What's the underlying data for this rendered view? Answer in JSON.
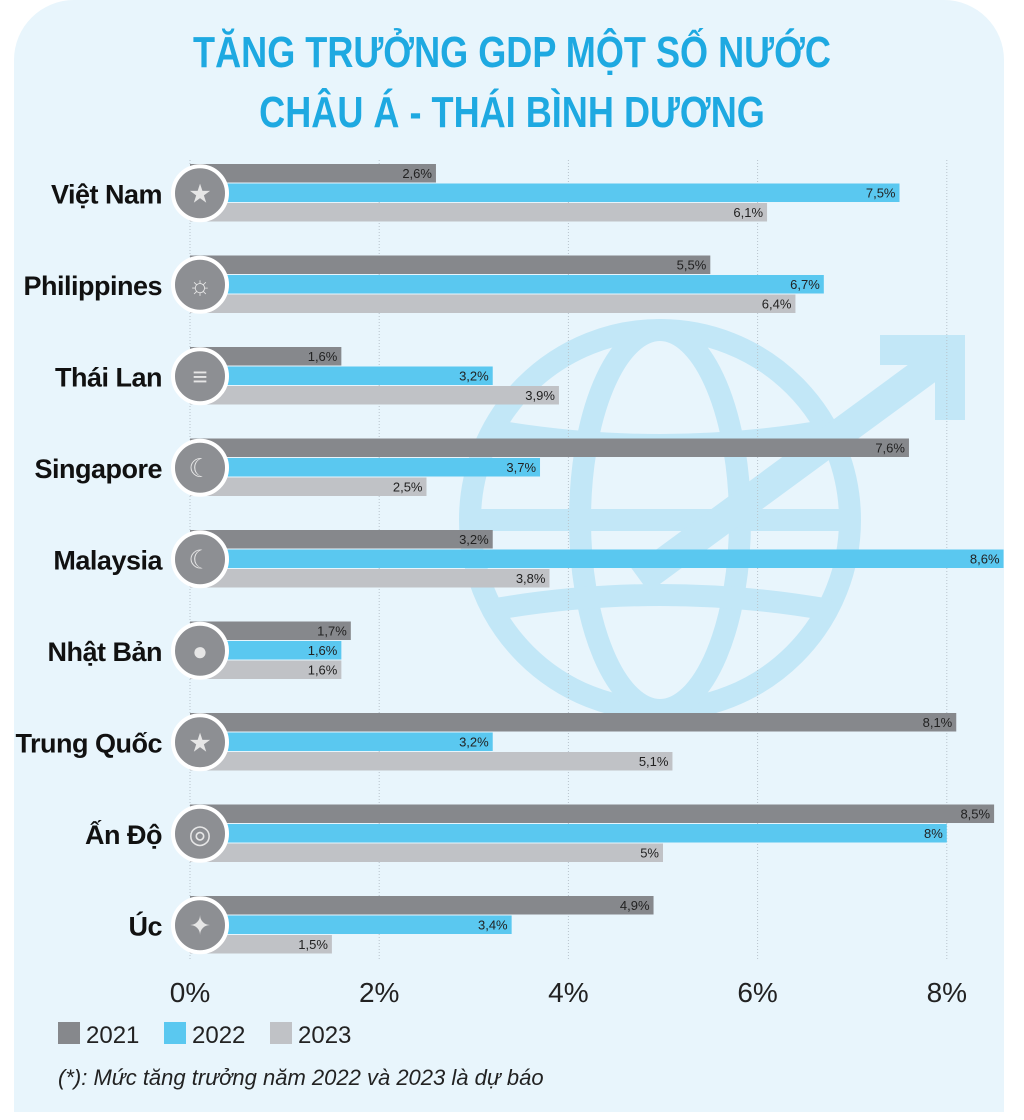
{
  "title_line1": "TĂNG TRƯỞNG GDP MỘT SỐ NƯỚC",
  "title_line2": "CHÂU Á - THÁI BÌNH DƯƠNG",
  "note": "(*): Mức tăng trưởng năm 2022 và 2023 là dự báo",
  "colors": {
    "2021": "#86888c",
    "2022": "#5ac8f0",
    "2023": "#c0c2c6",
    "title": "#1ea9e1"
  },
  "chart_data": {
    "type": "bar",
    "orientation": "horizontal",
    "title": "TĂNG TRƯỞNG GDP MỘT SỐ NƯỚC CHÂU Á - THÁI BÌNH DƯƠNG",
    "categories": [
      "Việt Nam",
      "Philippines",
      "Thái Lan",
      "Singapore",
      "Malaysia",
      "Nhật Bản",
      "Trung Quốc",
      "Ấn Độ",
      "Úc"
    ],
    "series": [
      {
        "name": "2021",
        "values": [
          2.6,
          5.5,
          1.6,
          7.6,
          3.2,
          1.7,
          8.1,
          8.5,
          4.9
        ],
        "labels": [
          "2,6%",
          "5,5%",
          "1,6%",
          "7,6%",
          "3,2%",
          "1,7%",
          "8,1%",
          "8,5%",
          "4,9%"
        ]
      },
      {
        "name": "2022",
        "values": [
          7.5,
          6.7,
          3.2,
          3.7,
          8.6,
          1.6,
          3.2,
          8.0,
          3.4
        ],
        "labels": [
          "7,5%",
          "6,7%",
          "3,2%",
          "3,7%",
          "8,6%",
          "1,6%",
          "3,2%",
          "8%",
          "3,4%"
        ]
      },
      {
        "name": "2023",
        "values": [
          6.1,
          6.4,
          3.9,
          2.5,
          3.8,
          1.6,
          5.1,
          5.0,
          1.5
        ],
        "labels": [
          "6,1%",
          "6,4%",
          "3,9%",
          "2,5%",
          "3,8%",
          "1,6%",
          "5,1%",
          "5%",
          "1,5%"
        ]
      }
    ],
    "xlim": [
      0,
      8.6
    ],
    "xticks": [
      "0%",
      "2%",
      "4%",
      "6%",
      "8%"
    ],
    "xtick_values": [
      0,
      2,
      4,
      6,
      8
    ],
    "grid": true,
    "legend": [
      "2021",
      "2022",
      "2023"
    ],
    "legend_position": "bottom-left",
    "unit": "%"
  }
}
